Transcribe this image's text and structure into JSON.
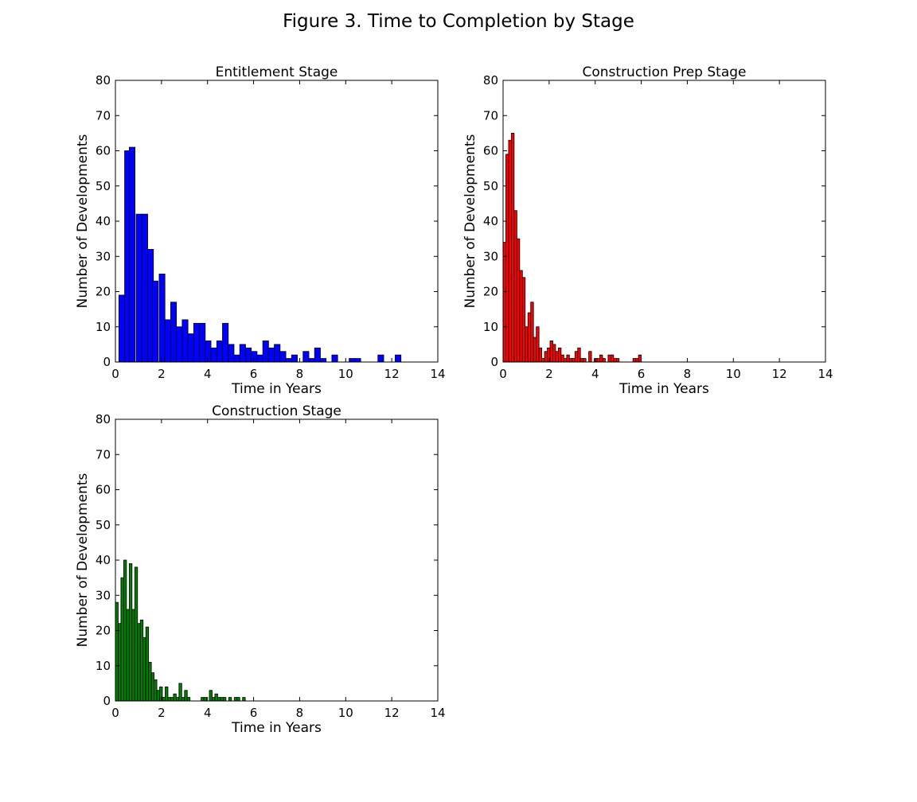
{
  "figure": {
    "title": "Figure 3. Time to Completion by Stage"
  },
  "chart_data": [
    {
      "type": "bar",
      "title": "Entitlement Stage",
      "xlabel": "Time in Years",
      "ylabel": "Number of Developments",
      "xlim": [
        0,
        14
      ],
      "ylim": [
        0,
        80
      ],
      "xticks": [
        0,
        2,
        4,
        6,
        8,
        10,
        12,
        14
      ],
      "yticks": [
        0,
        10,
        20,
        30,
        40,
        50,
        60,
        70,
        80
      ],
      "color": "#0000ff",
      "bin_width": 0.25,
      "bins_start": [
        0.15,
        0.4,
        0.6,
        0.9,
        1.15,
        1.4,
        1.6,
        1.9,
        2.15,
        2.4,
        2.65,
        2.9,
        3.15,
        3.4,
        3.65,
        3.9,
        4.15,
        4.4,
        4.65,
        4.9,
        5.15,
        5.4,
        5.65,
        5.9,
        6.15,
        6.4,
        6.65,
        6.9,
        7.15,
        7.4,
        7.65,
        7.9,
        8.15,
        8.4,
        8.65,
        8.9,
        9.15,
        9.4,
        9.65,
        9.9,
        10.15,
        10.4,
        10.65,
        10.9,
        11.15,
        11.4,
        11.65,
        11.9,
        12.15
      ],
      "values": [
        19,
        60,
        61,
        42,
        42,
        32,
        23,
        25,
        12,
        17,
        10,
        12,
        8,
        11,
        11,
        6,
        4,
        6,
        11,
        5,
        2,
        5,
        4,
        3,
        2,
        6,
        4,
        5,
        3,
        1,
        2,
        0,
        3,
        1,
        4,
        1,
        0,
        2,
        0,
        0,
        1,
        1,
        0,
        0,
        0,
        2,
        0,
        0,
        2
      ]
    },
    {
      "type": "bar",
      "title": "Construction Prep Stage",
      "xlabel": "Time in Years",
      "ylabel": "Number of Developments",
      "xlim": [
        0,
        14
      ],
      "ylim": [
        0,
        80
      ],
      "xticks": [
        0,
        2,
        4,
        6,
        8,
        10,
        12,
        14
      ],
      "yticks": [
        0,
        10,
        20,
        30,
        40,
        50,
        60,
        70,
        80
      ],
      "color": "#ff0000",
      "bin_width": 0.12,
      "bins_start": [
        0.0,
        0.12,
        0.24,
        0.36,
        0.48,
        0.6,
        0.72,
        0.84,
        0.96,
        1.08,
        1.2,
        1.32,
        1.44,
        1.56,
        1.68,
        1.8,
        1.92,
        2.04,
        2.16,
        2.28,
        2.4,
        2.52,
        2.64,
        2.76,
        2.88,
        3.0,
        3.12,
        3.24,
        3.36,
        3.48,
        3.6,
        3.72,
        3.84,
        3.96,
        4.08,
        4.2,
        4.32,
        4.44,
        4.56,
        4.68,
        4.8,
        4.92,
        5.04,
        5.16,
        5.28,
        5.4,
        5.52,
        5.64,
        5.76,
        5.88,
        6.0,
        6.12,
        6.24,
        6.36,
        6.48,
        6.6,
        6.72,
        6.84
      ],
      "values": [
        34,
        59,
        63,
        65,
        43,
        35,
        26,
        24,
        10,
        14,
        17,
        7,
        10,
        4,
        1,
        3,
        4,
        6,
        5,
        3,
        4,
        2,
        1,
        2,
        1,
        1,
        3,
        4,
        1,
        1,
        0,
        3,
        0,
        1,
        1,
        2,
        1,
        0,
        2,
        2,
        1,
        1,
        0,
        0,
        0,
        0,
        0,
        1,
        1,
        2,
        0,
        0,
        0,
        0,
        0,
        0,
        0,
        0
      ]
    },
    {
      "type": "bar",
      "title": "Construction Stage",
      "xlabel": "Time in Years",
      "ylabel": "Number of Developments",
      "xlim": [
        0,
        14
      ],
      "ylim": [
        0,
        80
      ],
      "xticks": [
        0,
        2,
        4,
        6,
        8,
        10,
        12,
        14
      ],
      "yticks": [
        0,
        10,
        20,
        30,
        40,
        50,
        60,
        70,
        80
      ],
      "color": "#008000",
      "bin_width": 0.12,
      "bins_start": [
        0.0,
        0.12,
        0.24,
        0.36,
        0.48,
        0.6,
        0.72,
        0.84,
        0.96,
        1.08,
        1.2,
        1.32,
        1.44,
        1.56,
        1.68,
        1.8,
        1.92,
        2.04,
        2.16,
        2.28,
        2.4,
        2.52,
        2.64,
        2.76,
        2.88,
        3.0,
        3.12,
        3.24,
        3.36,
        3.48,
        3.6,
        3.72,
        3.84,
        3.96,
        4.08,
        4.2,
        4.32,
        4.44,
        4.56,
        4.68,
        4.8,
        4.92,
        5.04,
        5.16,
        5.28,
        5.4,
        5.52,
        5.64
      ],
      "values": [
        28,
        22,
        35,
        40,
        26,
        39,
        26,
        38,
        22,
        23,
        18,
        21,
        11,
        8,
        6,
        3,
        4,
        1,
        4,
        1,
        1,
        2,
        1,
        5,
        1,
        3,
        1,
        0,
        0,
        0,
        0,
        1,
        1,
        0,
        3,
        1,
        2,
        1,
        1,
        1,
        0,
        1,
        0,
        1,
        1,
        0,
        1,
        0
      ]
    }
  ]
}
